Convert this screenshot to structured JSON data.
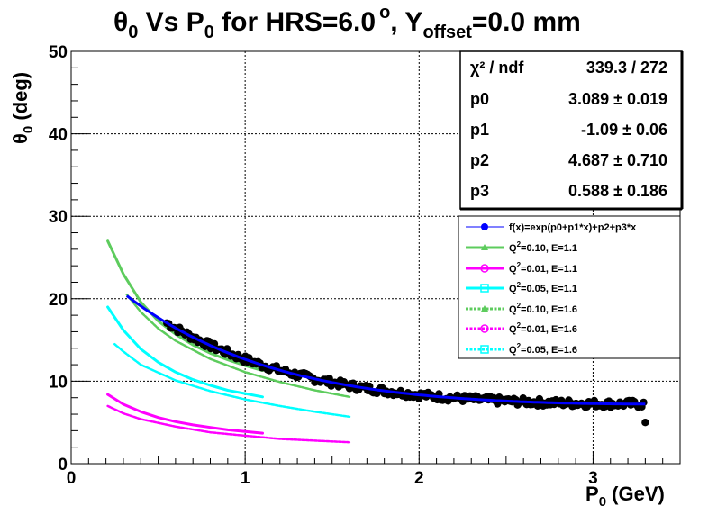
{
  "title": {
    "part1": "θ",
    "sub1": "0",
    "part2": " Vs P",
    "sub2": "0",
    "part3": " for HRS=6.0",
    "sup": "o",
    "part4": ", Y",
    "sub3": "offset",
    "part5": "=0.0 mm"
  },
  "xaxis": {
    "label": "P",
    "label_sub": "0",
    "label_unit": " (GeV)"
  },
  "yaxis": {
    "label": "θ",
    "label_sub": "0",
    "label_unit": " (deg)"
  },
  "stats": {
    "chi_label": "χ² / ndf",
    "chi_value": "339.3 / 272",
    "rows": [
      {
        "name": "p0",
        "value": "3.089 ± 0.019"
      },
      {
        "name": "p1",
        "value": "-1.09 ± 0.06"
      },
      {
        "name": "p2",
        "value": "4.687 ± 0.710"
      },
      {
        "name": "p3",
        "value": "0.588 ± 0.186"
      }
    ]
  },
  "legend": {
    "entries": [
      {
        "label": "f(x)=exp(p0+p1*x)+p2+p3*x",
        "color": "#0000ff",
        "marker": "dot-black"
      },
      {
        "label_pre": "Q",
        "label_sup": "2",
        "label_post": "=0.10, E=1.1",
        "color": "#5dcc5d",
        "marker": "triangle"
      },
      {
        "label_pre": "Q",
        "label_sup": "2",
        "label_post": "=0.01, E=1.1",
        "color": "#ff00ff",
        "marker": "circle-open"
      },
      {
        "label_pre": "Q",
        "label_sup": "2",
        "label_post": "=0.05, E=1.1",
        "color": "#00ffff",
        "marker": "square-open"
      },
      {
        "label_pre": "Q",
        "label_sup": "2",
        "label_post": "=0.10, E=1.6",
        "color": "#5dcc5d",
        "marker": "triangle"
      },
      {
        "label_pre": "Q",
        "label_sup": "2",
        "label_post": "=0.01, E=1.6",
        "color": "#ff00ff",
        "marker": "circle-open"
      },
      {
        "label_pre": "Q",
        "label_sup": "2",
        "label_post": "=0.05, E=1.6",
        "color": "#00ffff",
        "marker": "square-open"
      }
    ]
  },
  "chart_data": {
    "type": "scatter",
    "xlim": [
      0,
      3.5
    ],
    "ylim": [
      0,
      50
    ],
    "x_ticks": [
      0,
      1,
      2,
      3
    ],
    "x_tick_labels": [
      "0",
      "1",
      "2",
      "3"
    ],
    "y_ticks": [
      0,
      10,
      20,
      30,
      40,
      50
    ],
    "y_tick_labels": [
      "0",
      "10",
      "20",
      "30",
      "40",
      "50"
    ],
    "grid": true,
    "legend_position": "right",
    "data_points": {
      "x_range": [
        0.55,
        3.3
      ],
      "sample_x": [
        0.55,
        0.6,
        0.7,
        0.8,
        0.9,
        1.0,
        1.2,
        1.4,
        1.6,
        1.8,
        2.0,
        2.2,
        2.4,
        2.6,
        2.8,
        3.0,
        3.2,
        3.3
      ],
      "sample_y": [
        17.6,
        17.0,
        15.9,
        15.0,
        14.2,
        13.4,
        12.2,
        11.2,
        10.4,
        9.7,
        9.1,
        8.7,
        8.3,
        8.0,
        7.8,
        7.6,
        7.4,
        7.3
      ],
      "outlier": [
        3.3,
        5.0
      ]
    },
    "fit": {
      "p0": 3.089,
      "p1": -1.09,
      "p2": 4.687,
      "p3": 0.588,
      "x_range": [
        0.32,
        3.3
      ]
    },
    "series": [
      {
        "name": "Q2=0.10, E=1.1",
        "x": [
          0.21,
          0.3,
          0.4,
          0.5,
          0.6,
          0.7,
          0.8,
          0.9,
          1.0,
          1.1
        ],
        "y": [
          27.0,
          23.0,
          19.6,
          17.3,
          15.7,
          14.4,
          13.4,
          12.6,
          11.9,
          11.3
        ],
        "color": "#5dcc5d",
        "style": "solid"
      },
      {
        "name": "Q2=0.01, E=1.1",
        "x": [
          0.21,
          0.3,
          0.4,
          0.5,
          0.6,
          0.7,
          0.8,
          0.9,
          1.0,
          1.1
        ],
        "y": [
          8.4,
          7.2,
          6.3,
          5.6,
          5.1,
          4.7,
          4.4,
          4.1,
          3.9,
          3.7
        ],
        "color": "#ff00ff",
        "style": "solid"
      },
      {
        "name": "Q2=0.05, E=1.1",
        "x": [
          0.21,
          0.3,
          0.4,
          0.5,
          0.6,
          0.7,
          0.8,
          0.9,
          1.0,
          1.1
        ],
        "y": [
          19.0,
          16.2,
          13.9,
          12.3,
          11.1,
          10.2,
          9.5,
          8.9,
          8.5,
          8.1
        ],
        "color": "#00ffff",
        "style": "solid"
      },
      {
        "name": "Q2=0.10, E=1.6",
        "x": [
          0.32,
          0.4,
          0.5,
          0.6,
          0.8,
          1.0,
          1.2,
          1.4,
          1.6
        ],
        "y": [
          20.5,
          18.4,
          16.4,
          14.9,
          12.7,
          11.1,
          9.9,
          8.9,
          8.1
        ],
        "color": "#5dcc5d",
        "style": "dashed"
      },
      {
        "name": "Q2=0.01, E=1.6",
        "x": [
          0.21,
          0.3,
          0.4,
          0.6,
          0.8,
          1.0,
          1.2,
          1.4,
          1.6
        ],
        "y": [
          7.0,
          6.1,
          5.4,
          4.5,
          3.8,
          3.4,
          3.0,
          2.8,
          2.6
        ],
        "color": "#ff00ff",
        "style": "dashed"
      },
      {
        "name": "Q2=0.05, E=1.6",
        "x": [
          0.25,
          0.3,
          0.4,
          0.6,
          0.8,
          1.0,
          1.2,
          1.4,
          1.6
        ],
        "y": [
          14.5,
          13.6,
          12.0,
          10.1,
          8.8,
          7.8,
          7.0,
          6.3,
          5.7
        ],
        "color": "#00ffff",
        "style": "dashed"
      }
    ]
  }
}
